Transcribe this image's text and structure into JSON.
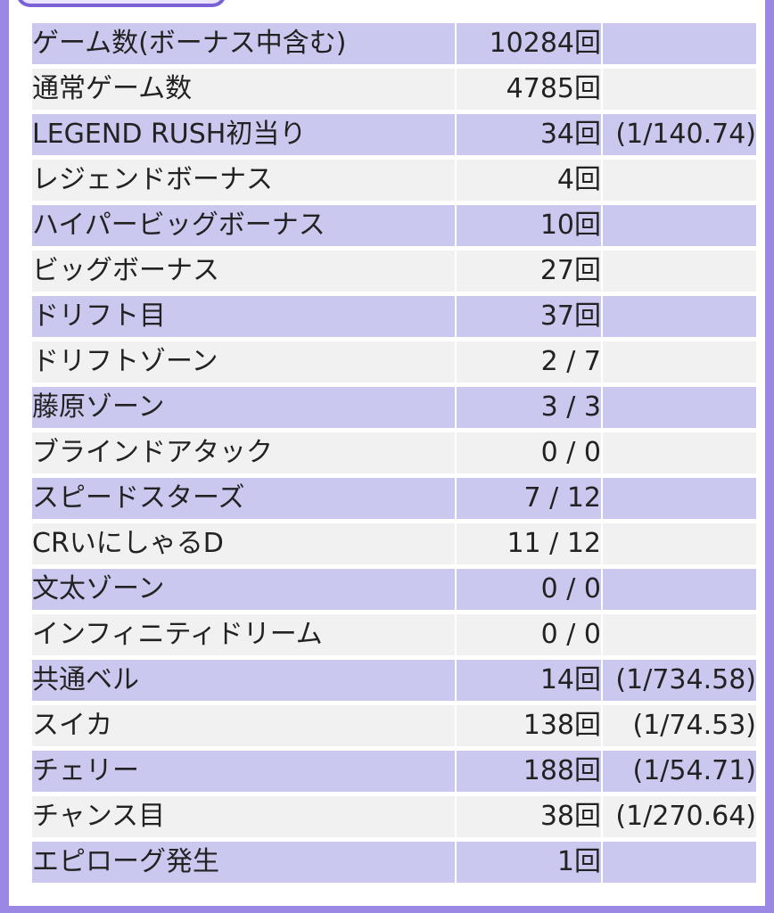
{
  "table": {
    "rows": [
      {
        "label": "ゲーム数(ボーナス中含む)",
        "count": "10284回",
        "ratio": ""
      },
      {
        "label": "通常ゲーム数",
        "count": "4785回",
        "ratio": ""
      },
      {
        "label": "LEGEND RUSH初当り",
        "count": "34回",
        "ratio": "(1/140.74)"
      },
      {
        "label": "レジェンドボーナス",
        "count": "4回",
        "ratio": ""
      },
      {
        "label": "ハイパービッグボーナス",
        "count": "10回",
        "ratio": ""
      },
      {
        "label": "ビッグボーナス",
        "count": "27回",
        "ratio": ""
      },
      {
        "label": "ドリフト目",
        "count": "37回",
        "ratio": ""
      },
      {
        "label": "ドリフトゾーン",
        "count": "2 / 7",
        "ratio": ""
      },
      {
        "label": "藤原ゾーン",
        "count": "3 / 3",
        "ratio": ""
      },
      {
        "label": "ブラインドアタック",
        "count": "0 / 0",
        "ratio": ""
      },
      {
        "label": "スピードスターズ",
        "count": "7 / 12",
        "ratio": ""
      },
      {
        "label": "CRいにしゃるD",
        "count": "11 / 12",
        "ratio": ""
      },
      {
        "label": "文太ゾーン",
        "count": "0 / 0",
        "ratio": ""
      },
      {
        "label": "インフィニティドリーム",
        "count": "0 / 0",
        "ratio": ""
      },
      {
        "label": "共通ベル",
        "count": "14回",
        "ratio": "(1/734.58)"
      },
      {
        "label": "スイカ",
        "count": "138回",
        "ratio": "(1/74.53)"
      },
      {
        "label": "チェリー",
        "count": "188回",
        "ratio": "(1/54.71)"
      },
      {
        "label": "チャンス目",
        "count": "38回",
        "ratio": "(1/270.64)"
      },
      {
        "label": "エピローグ発生",
        "count": "1回",
        "ratio": ""
      }
    ]
  },
  "colors": {
    "frame_border": "#9b88e4",
    "row_stripe_purple": "#cbc8f0",
    "row_stripe_gray": "#f1f1f1",
    "text": "#222222"
  }
}
